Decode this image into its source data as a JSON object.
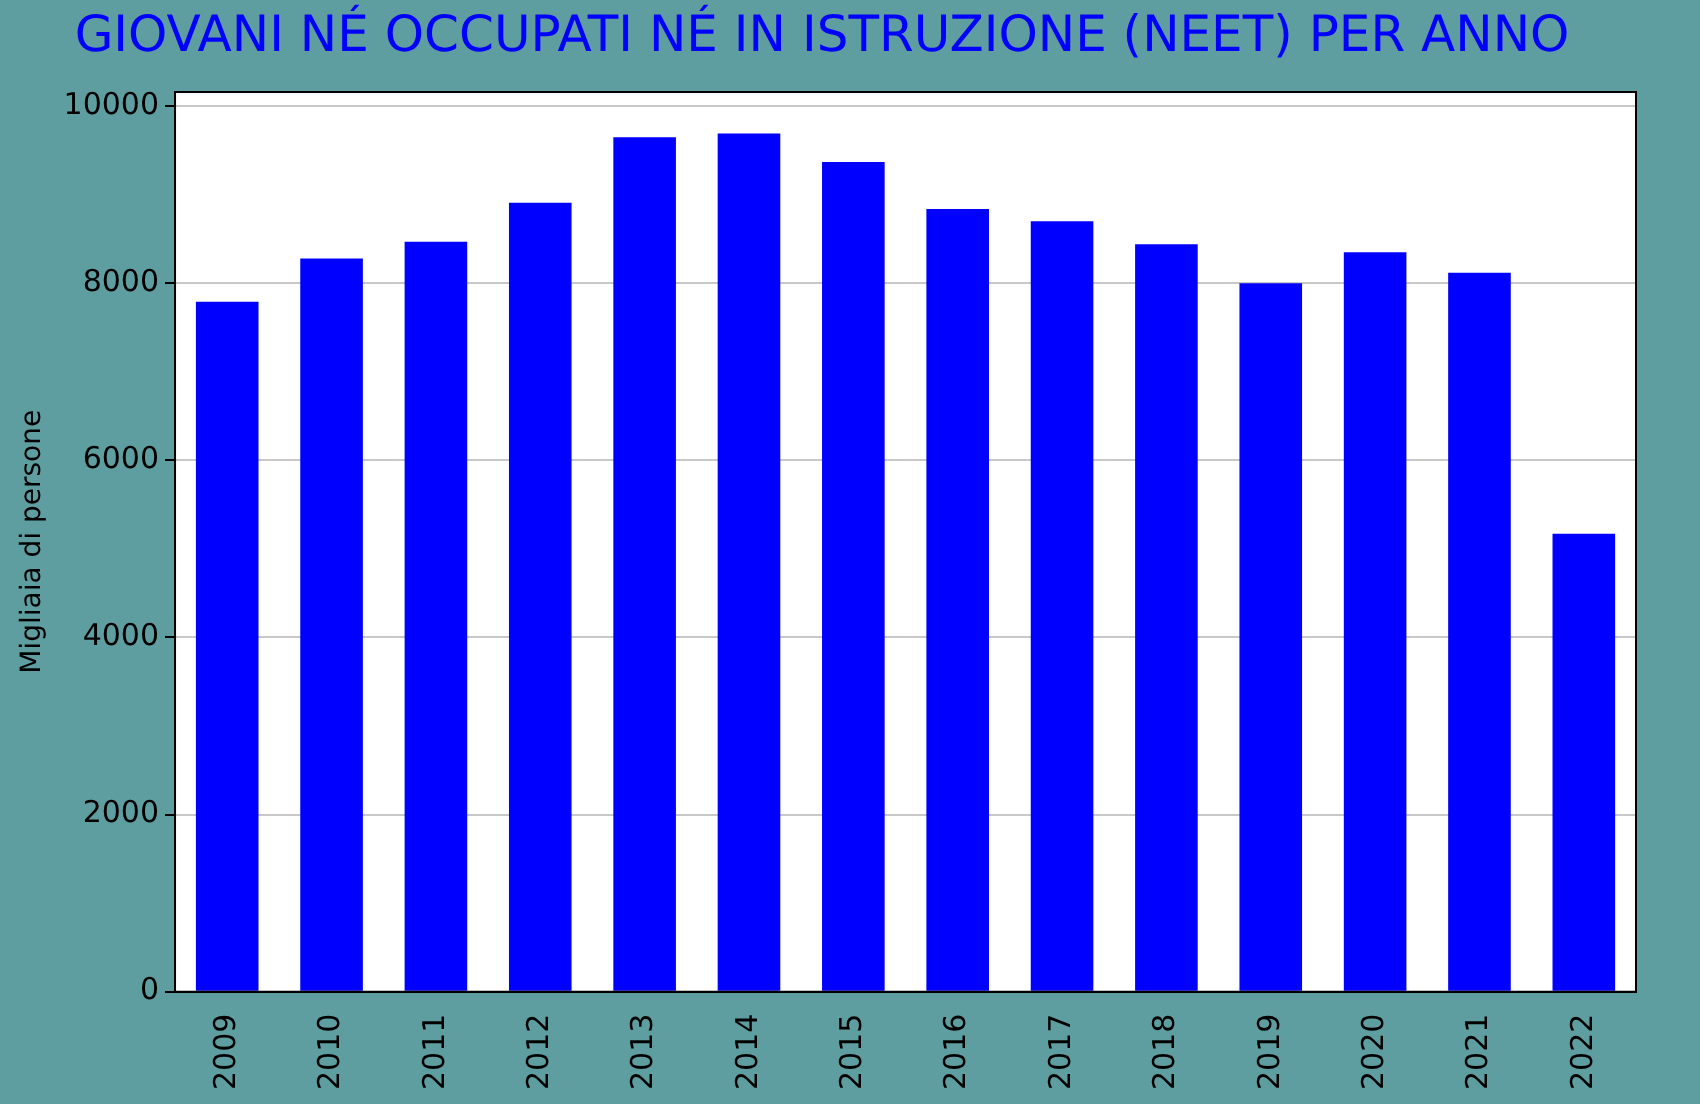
{
  "chart_data": {
    "type": "bar",
    "title": "GIOVANI NÉ OCCUPATI NÉ IN ISTRUZIONE (NEET) PER ANNO",
    "ylabel": "Migliaia di persone",
    "categories": [
      "2009",
      "2010",
      "2011",
      "2012",
      "2013",
      "2014",
      "2015",
      "2016",
      "2017",
      "2018",
      "2019",
      "2020",
      "2021",
      "2022"
    ],
    "values": [
      7790,
      8280,
      8470,
      8910,
      9650,
      9690,
      9370,
      8840,
      8700,
      8440,
      8000,
      8350,
      8120,
      5170
    ],
    "color": "#0000ff",
    "ylim": [
      0,
      10160
    ],
    "yticks": [
      0,
      2000,
      4000,
      6000,
      8000,
      10000
    ],
    "grid": "y",
    "legend": false
  }
}
